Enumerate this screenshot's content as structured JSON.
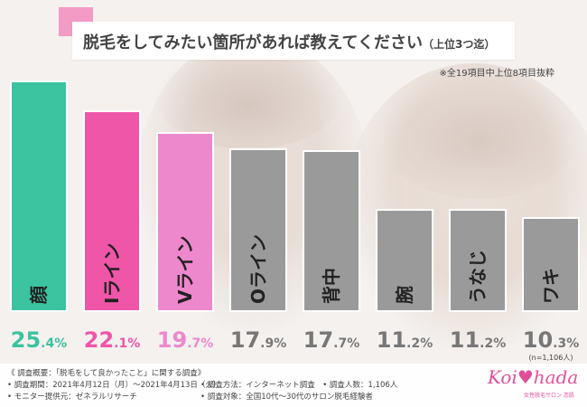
{
  "title": {
    "main": "脱毛をしてみたい箇所があれば教えてください",
    "sub": "（上位3つ迄）"
  },
  "note": "※全19項目中上位8項目抜粋",
  "sample_note": "(n=1,106人)",
  "colors": {
    "teal": "#3cc3a0",
    "magenta": "#ef56a8",
    "pink": "#ee88cc",
    "gray": "#9a9a9a",
    "title_accent": "#f39ac5"
  },
  "chart_data": {
    "type": "bar",
    "categories": [
      "顔",
      "Iライン",
      "Vライン",
      "Oライン",
      "背中",
      "腕",
      "うなじ",
      "ワキ"
    ],
    "values": [
      25.4,
      22.1,
      19.7,
      17.9,
      17.7,
      11.2,
      11.2,
      10.3
    ],
    "value_labels_int": [
      "25",
      "22",
      "19",
      "17",
      "17",
      "11",
      "11",
      "10"
    ],
    "value_labels_dec": [
      ".4%",
      ".1%",
      ".7%",
      ".9%",
      ".7%",
      ".2%",
      ".2%",
      ".3%"
    ],
    "bar_colors": [
      "#3cc3a0",
      "#ef56a8",
      "#ee88cc",
      "#9a9a9a",
      "#9a9a9a",
      "#9a9a9a",
      "#9a9a9a",
      "#9a9a9a"
    ],
    "label_colors": [
      "#3cc3a0",
      "#ef56a8",
      "#ee88cc",
      "#777777",
      "#777777",
      "#777777",
      "#777777",
      "#777777"
    ],
    "ylim": [
      0,
      25.4
    ],
    "grid": false,
    "legend": "none"
  },
  "footer": {
    "line1": "《 調査概要：「脱毛をして良かったこと」に関する調査》",
    "line2": "• 調査期間：2021年4月12日（月）～2021年4月13日（火）",
    "line3": "• モニター提供元：ゼネラルリサーチ",
    "line4": "• 調査方法：インターネット調査　• 調査人数：1,106人",
    "line5": "• 調査対象：全国10代～30代のサロン脱毛経験者"
  },
  "logo": {
    "text": "Koi♥hada",
    "sub": "女性脱毛サロン 恋肌"
  }
}
